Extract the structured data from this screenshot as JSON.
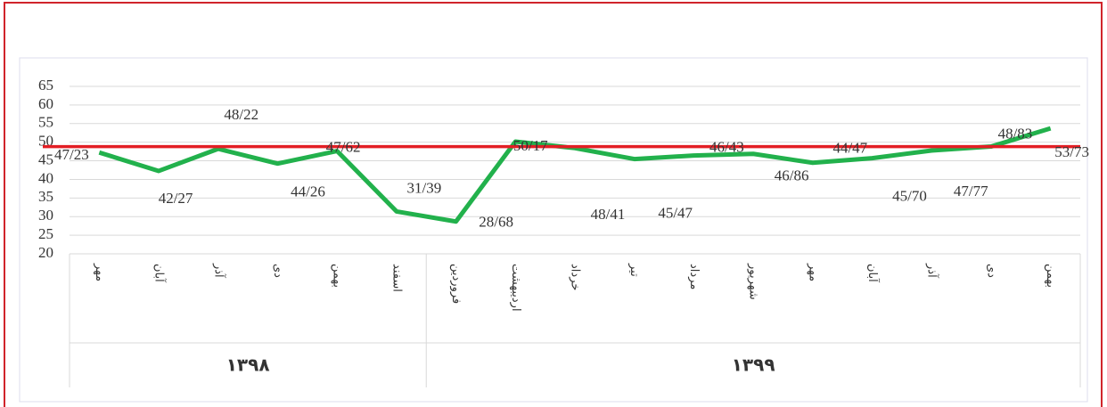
{
  "chart_data": {
    "type": "line",
    "categories": [
      "مهر",
      "آبان",
      "آذر",
      "دی",
      "بهمن",
      "اسفند",
      "فروردین",
      "اردیبهشت",
      "خرداد",
      "تیر",
      "مرداد",
      "شهریور",
      "مهر",
      "آبان",
      "آذر",
      "دی",
      "بهمن"
    ],
    "groups": [
      {
        "label": "۱۳۹۸",
        "span": 6
      },
      {
        "label": "۱۳۹۹",
        "span": 11
      }
    ],
    "values": [
      47.23,
      42.27,
      48.22,
      44.26,
      47.62,
      31.39,
      28.68,
      50.17,
      48.41,
      45.47,
      46.43,
      46.86,
      44.47,
      45.7,
      47.77,
      48.83,
      53.73
    ],
    "value_labels": [
      "47/23",
      "42/27",
      "48/22",
      "44/26",
      "47/62",
      "31/39",
      "28/68",
      "50/17",
      "48/41",
      "45/47",
      "46/43",
      "46/86",
      "44/47",
      "45/70",
      "47/77",
      "48/83",
      "53/73"
    ],
    "color": "#22b14c",
    "reference_line": {
      "value": 48.8,
      "color": "#e31e24"
    },
    "ylim": [
      20,
      65
    ],
    "yticks": [
      20,
      25,
      30,
      35,
      40,
      45,
      50,
      55,
      60,
      65
    ],
    "grid": true
  }
}
